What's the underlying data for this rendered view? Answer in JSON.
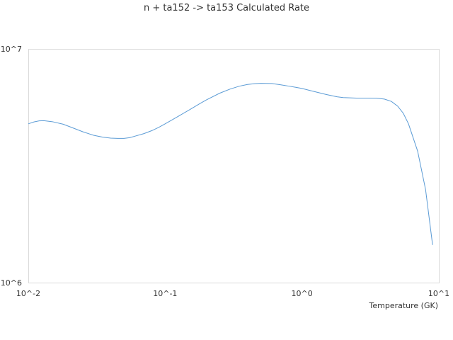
{
  "chart_data": {
    "type": "line",
    "title": "n + ta152 -> ta153 Calculated Rate",
    "xlabel": "Temperature (GK)",
    "ylabel": "",
    "x_scale": "log",
    "y_scale": "log",
    "xlim": [
      0.01,
      10
    ],
    "ylim": [
      1000000,
      10000000
    ],
    "x_ticks": [
      "10^-2",
      "10^-1",
      "10^0",
      "10^1"
    ],
    "y_ticks": [
      "10^6",
      "10^7"
    ],
    "grid": false,
    "line_color": "#5b9bd5",
    "series": [
      {
        "x": [
          0.01,
          0.011,
          0.012,
          0.013,
          0.015,
          0.018,
          0.02,
          0.025,
          0.03,
          0.035,
          0.04,
          0.045,
          0.05,
          0.055,
          0.06,
          0.07,
          0.08,
          0.09,
          0.1,
          0.12,
          0.15,
          0.18,
          0.2,
          0.25,
          0.3,
          0.35,
          0.4,
          0.45,
          0.5,
          0.6,
          0.7,
          0.8,
          0.9,
          1.0,
          1.2,
          1.5,
          1.8,
          2.0,
          2.5,
          3.0,
          3.5,
          4.0,
          4.5,
          5.0,
          5.5,
          6.0,
          7.0,
          8.0,
          9.0
        ],
        "y": [
          4780000,
          4870000,
          4920000,
          4930000,
          4880000,
          4760000,
          4650000,
          4420000,
          4270000,
          4190000,
          4150000,
          4140000,
          4140000,
          4170000,
          4230000,
          4340000,
          4470000,
          4620000,
          4780000,
          5080000,
          5480000,
          5840000,
          6050000,
          6460000,
          6740000,
          6930000,
          7040000,
          7100000,
          7120000,
          7110000,
          7020000,
          6930000,
          6850000,
          6770000,
          6590000,
          6380000,
          6240000,
          6190000,
          6160000,
          6160000,
          6150000,
          6100000,
          5960000,
          5690000,
          5300000,
          4780000,
          3650000,
          2500000,
          1450000
        ]
      }
    ]
  }
}
